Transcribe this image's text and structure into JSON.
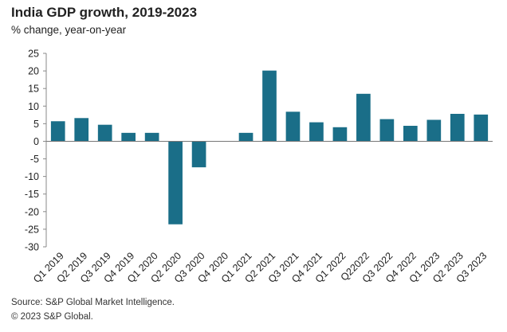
{
  "header": {
    "title": "India GDP growth, 2019-2023",
    "subtitle": "% change, year-on-year"
  },
  "footer": {
    "source": "Source: S&P Global Market Intelligence.",
    "copyright": "© 2023 S&P Global."
  },
  "colors": {
    "bar": "#1a6e88",
    "axis": "#888888",
    "zero_line": "#777777"
  },
  "chart_data": {
    "type": "bar",
    "title": "India GDP growth, 2019-2023",
    "ylabel": "% change, year-on-year",
    "xlabel": "",
    "ylim": [
      -30,
      25
    ],
    "yticks": [
      25,
      20,
      15,
      10,
      5,
      0,
      -5,
      -10,
      -15,
      -20,
      -25,
      -30
    ],
    "grid": false,
    "categories": [
      "Q1 2019",
      "Q2 2019",
      "Q3 2019",
      "Q4 2019",
      "Q1 2020",
      "Q2 2020",
      "Q3 2020",
      "Q4 2020",
      "Q1 2021",
      "Q2 2021",
      "Q3 2021",
      "Q4 2021",
      "Q1 2022",
      "Q22022",
      "Q3 2022",
      "Q4 2022",
      "Q1 2023",
      "Q2 2023",
      "Q3 2023"
    ],
    "values": [
      5.7,
      6.6,
      4.7,
      2.4,
      2.4,
      -23.6,
      -7.4,
      0.0,
      2.4,
      20.1,
      8.4,
      5.4,
      4.0,
      13.5,
      6.3,
      4.4,
      6.1,
      7.8,
      7.6
    ]
  }
}
